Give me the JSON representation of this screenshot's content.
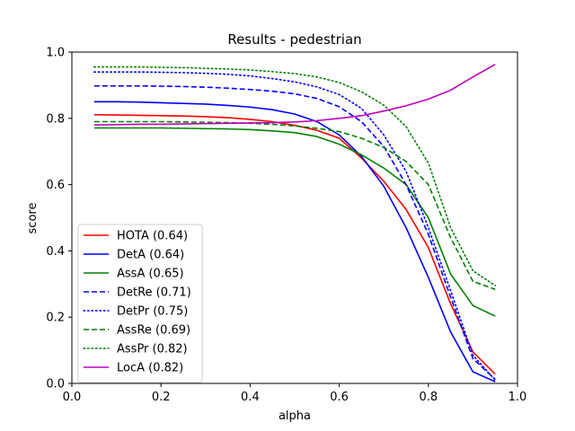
{
  "chart_data": {
    "type": "line",
    "title": "Results - pedestrian",
    "xlabel": "alpha",
    "ylabel": "score",
    "xlim": [
      0.0,
      1.0
    ],
    "ylim": [
      0.0,
      1.0
    ],
    "xticks": [
      "0.0",
      "0.2",
      "0.4",
      "0.6",
      "0.8",
      "1.0"
    ],
    "yticks": [
      "0.0",
      "0.2",
      "0.4",
      "0.6",
      "0.8",
      "1.0"
    ],
    "grid": false,
    "legend_position": "lower-left",
    "x": [
      0.05,
      0.1,
      0.15,
      0.2,
      0.25,
      0.3,
      0.35,
      0.4,
      0.45,
      0.5,
      0.55,
      0.6,
      0.65,
      0.7,
      0.75,
      0.8,
      0.85,
      0.9,
      0.95
    ],
    "series": [
      {
        "name": "HOTA (0.64)",
        "color": "#ff0000",
        "dash": "solid",
        "values": [
          0.811,
          0.81,
          0.809,
          0.808,
          0.807,
          0.805,
          0.802,
          0.797,
          0.79,
          0.779,
          0.764,
          0.74,
          0.68,
          0.61,
          0.525,
          0.41,
          0.24,
          0.095,
          0.028
        ]
      },
      {
        "name": "DetA (0.64)",
        "color": "#0000ff",
        "dash": "solid",
        "values": [
          0.85,
          0.85,
          0.849,
          0.847,
          0.845,
          0.843,
          0.839,
          0.834,
          0.826,
          0.813,
          0.79,
          0.75,
          0.685,
          0.595,
          0.47,
          0.32,
          0.155,
          0.035,
          0.005
        ]
      },
      {
        "name": "AssA (0.65)",
        "color": "#008000",
        "dash": "solid",
        "values": [
          0.771,
          0.771,
          0.771,
          0.771,
          0.77,
          0.769,
          0.768,
          0.766,
          0.762,
          0.757,
          0.745,
          0.722,
          0.69,
          0.65,
          0.6,
          0.5,
          0.33,
          0.235,
          0.203
        ]
      },
      {
        "name": "DetRe (0.71)",
        "color": "#0000ff",
        "dash": "dashed",
        "values": [
          0.898,
          0.898,
          0.898,
          0.897,
          0.896,
          0.894,
          0.891,
          0.887,
          0.882,
          0.874,
          0.86,
          0.835,
          0.79,
          0.715,
          0.6,
          0.45,
          0.26,
          0.075,
          0.012
        ]
      },
      {
        "name": "DetPr (0.75)",
        "color": "#0000ff",
        "dash": "dotted",
        "values": [
          0.94,
          0.94,
          0.94,
          0.939,
          0.938,
          0.936,
          0.933,
          0.928,
          0.92,
          0.91,
          0.895,
          0.872,
          0.83,
          0.75,
          0.64,
          0.47,
          0.28,
          0.085,
          0.01
        ]
      },
      {
        "name": "AssRe (0.69)",
        "color": "#008000",
        "dash": "dashed",
        "values": [
          0.79,
          0.79,
          0.79,
          0.79,
          0.789,
          0.788,
          0.787,
          0.785,
          0.782,
          0.777,
          0.77,
          0.76,
          0.74,
          0.712,
          0.67,
          0.6,
          0.44,
          0.308,
          0.284
        ]
      },
      {
        "name": "AssPr (0.82)",
        "color": "#008000",
        "dash": "dotted",
        "values": [
          0.955,
          0.955,
          0.955,
          0.954,
          0.953,
          0.951,
          0.949,
          0.946,
          0.941,
          0.935,
          0.925,
          0.908,
          0.88,
          0.84,
          0.775,
          0.665,
          0.47,
          0.34,
          0.295
        ]
      },
      {
        "name": "LocA (0.82)",
        "color": "#bf00bf",
        "dash": "solid",
        "values": [
          0.78,
          0.781,
          0.782,
          0.782,
          0.783,
          0.784,
          0.785,
          0.786,
          0.787,
          0.789,
          0.793,
          0.8,
          0.808,
          0.822,
          0.838,
          0.858,
          0.885,
          0.925,
          0.963
        ]
      }
    ]
  }
}
